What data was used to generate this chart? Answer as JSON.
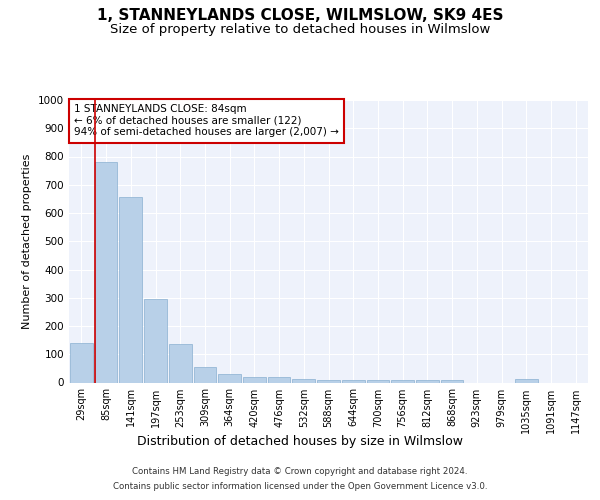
{
  "title": "1, STANNEYLANDS CLOSE, WILMSLOW, SK9 4ES",
  "subtitle": "Size of property relative to detached houses in Wilmslow",
  "xlabel": "Distribution of detached houses by size in Wilmslow",
  "ylabel": "Number of detached properties",
  "categories": [
    "29sqm",
    "85sqm",
    "141sqm",
    "197sqm",
    "253sqm",
    "309sqm",
    "364sqm",
    "420sqm",
    "476sqm",
    "532sqm",
    "588sqm",
    "644sqm",
    "700sqm",
    "756sqm",
    "812sqm",
    "868sqm",
    "923sqm",
    "979sqm",
    "1035sqm",
    "1091sqm",
    "1147sqm"
  ],
  "values": [
    140,
    780,
    655,
    295,
    137,
    55,
    30,
    20,
    20,
    14,
    8,
    8,
    10,
    10,
    10,
    8,
    0,
    0,
    13,
    0,
    0
  ],
  "bar_color": "#b8d0e8",
  "bar_edge_color": "#8ab0d0",
  "vline_x": 0.55,
  "vline_color": "#cc0000",
  "ylim": [
    0,
    1000
  ],
  "yticks": [
    0,
    100,
    200,
    300,
    400,
    500,
    600,
    700,
    800,
    900,
    1000
  ],
  "annotation_text": "1 STANNEYLANDS CLOSE: 84sqm\n← 6% of detached houses are smaller (122)\n94% of semi-detached houses are larger (2,007) →",
  "annotation_box_color": "#cc0000",
  "annotation_box_facecolor": "#ffffff",
  "footer_line1": "Contains HM Land Registry data © Crown copyright and database right 2024.",
  "footer_line2": "Contains public sector information licensed under the Open Government Licence v3.0.",
  "plot_bg_color": "#eef2fb",
  "title_fontsize": 11,
  "subtitle_fontsize": 9.5,
  "xlabel_fontsize": 9,
  "ylabel_fontsize": 8
}
